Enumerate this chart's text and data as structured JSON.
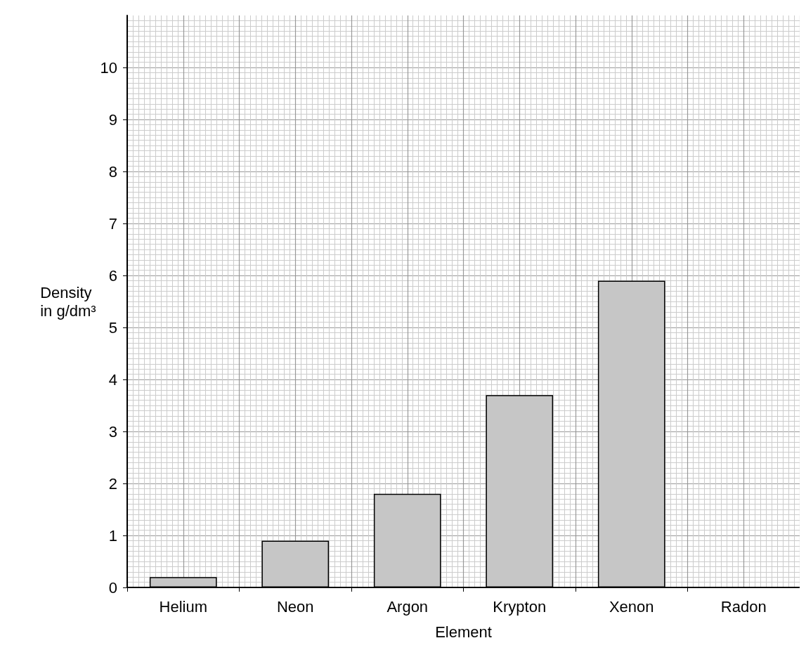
{
  "chart_data": {
    "type": "bar",
    "xlabel": "Element",
    "ylabel": "Density\nin g/dm³",
    "categories": [
      "Helium",
      "Neon",
      "Argon",
      "Krypton",
      "Xenon",
      "Radon"
    ],
    "values": [
      0.2,
      0.9,
      1.8,
      3.7,
      5.9,
      null
    ],
    "color": "#c6c6c6",
    "ylim": [
      0,
      11
    ],
    "yticks": [
      0,
      1,
      2,
      3,
      4,
      5,
      6,
      7,
      8,
      9,
      10
    ],
    "grid": true
  }
}
